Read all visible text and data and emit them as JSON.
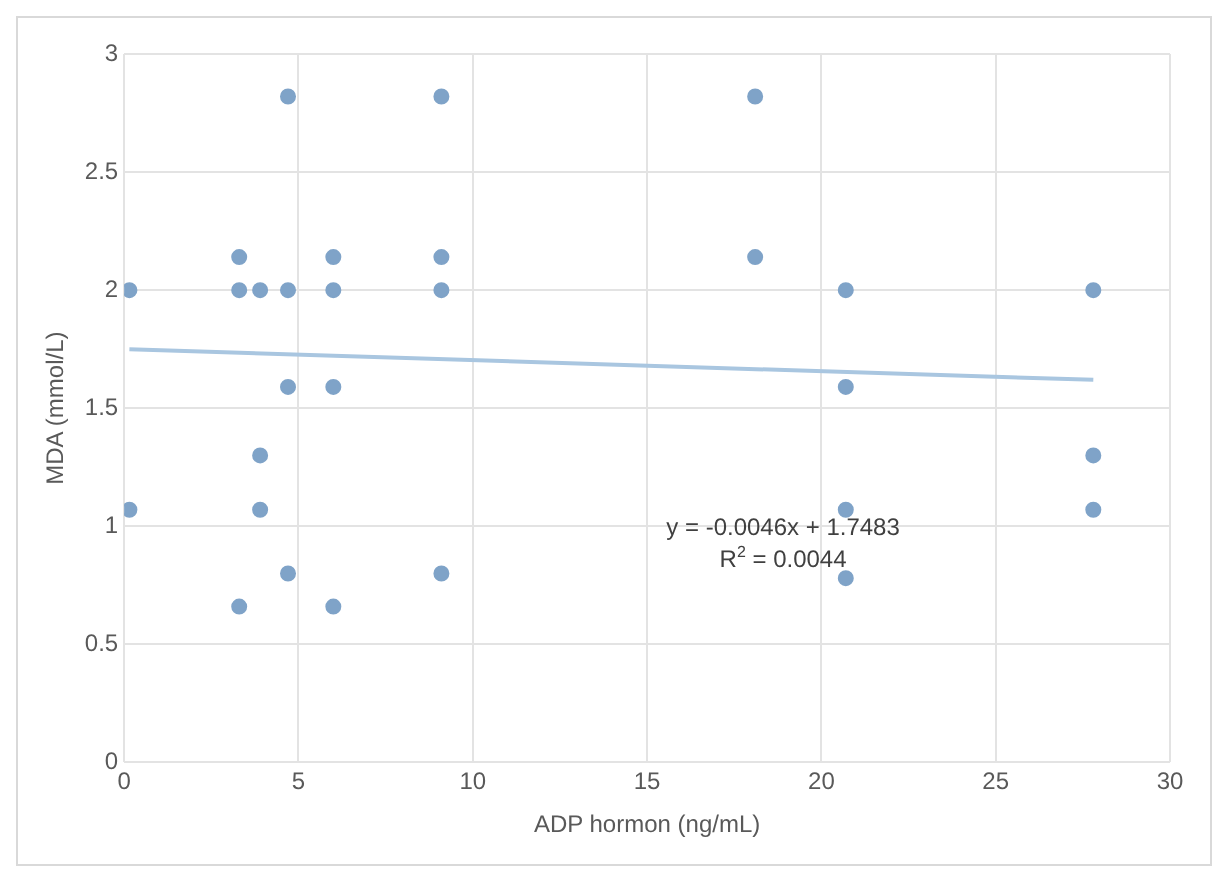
{
  "chart_data": {
    "type": "scatter",
    "xlabel": "ADP hormon (ng/mL)",
    "ylabel": "MDA (mmol/L)",
    "xlim": [
      0,
      30
    ],
    "xticks": [
      0,
      5,
      10,
      15,
      20,
      25,
      30
    ],
    "ylim": [
      0,
      3
    ],
    "yticks": [
      0,
      0.5,
      1,
      1.5,
      2,
      2.5,
      3
    ],
    "grid": true,
    "series": [
      {
        "type": "scatter",
        "marker": "circle",
        "color": "#7fa3c8",
        "x": [
          0.15,
          0.15,
          3.3,
          3.3,
          3.3,
          3.9,
          3.9,
          3.9,
          4.7,
          4.7,
          4.7,
          4.7,
          6.0,
          6.0,
          6.0,
          6.0,
          9.1,
          9.1,
          9.1,
          9.1,
          18.1,
          18.1,
          20.7,
          20.7,
          20.7,
          20.7,
          27.8,
          27.8,
          27.8
        ],
        "values": [
          2.0,
          1.07,
          2.14,
          2.0,
          0.66,
          2.0,
          1.3,
          1.07,
          2.82,
          2.0,
          1.59,
          0.8,
          2.14,
          2.0,
          1.59,
          0.66,
          2.82,
          2.14,
          2.0,
          0.8,
          2.82,
          2.14,
          2.0,
          1.59,
          1.07,
          0.78,
          2.0,
          1.3,
          1.07
        ]
      },
      {
        "type": "line",
        "color": "#a9c6e0",
        "x": [
          0.15,
          27.8
        ],
        "values": [
          1.75,
          1.62
        ]
      }
    ],
    "annotations": [
      "y = -0.0046x + 1.7483",
      "R$^{2}$ = 0.0044"
    ]
  }
}
